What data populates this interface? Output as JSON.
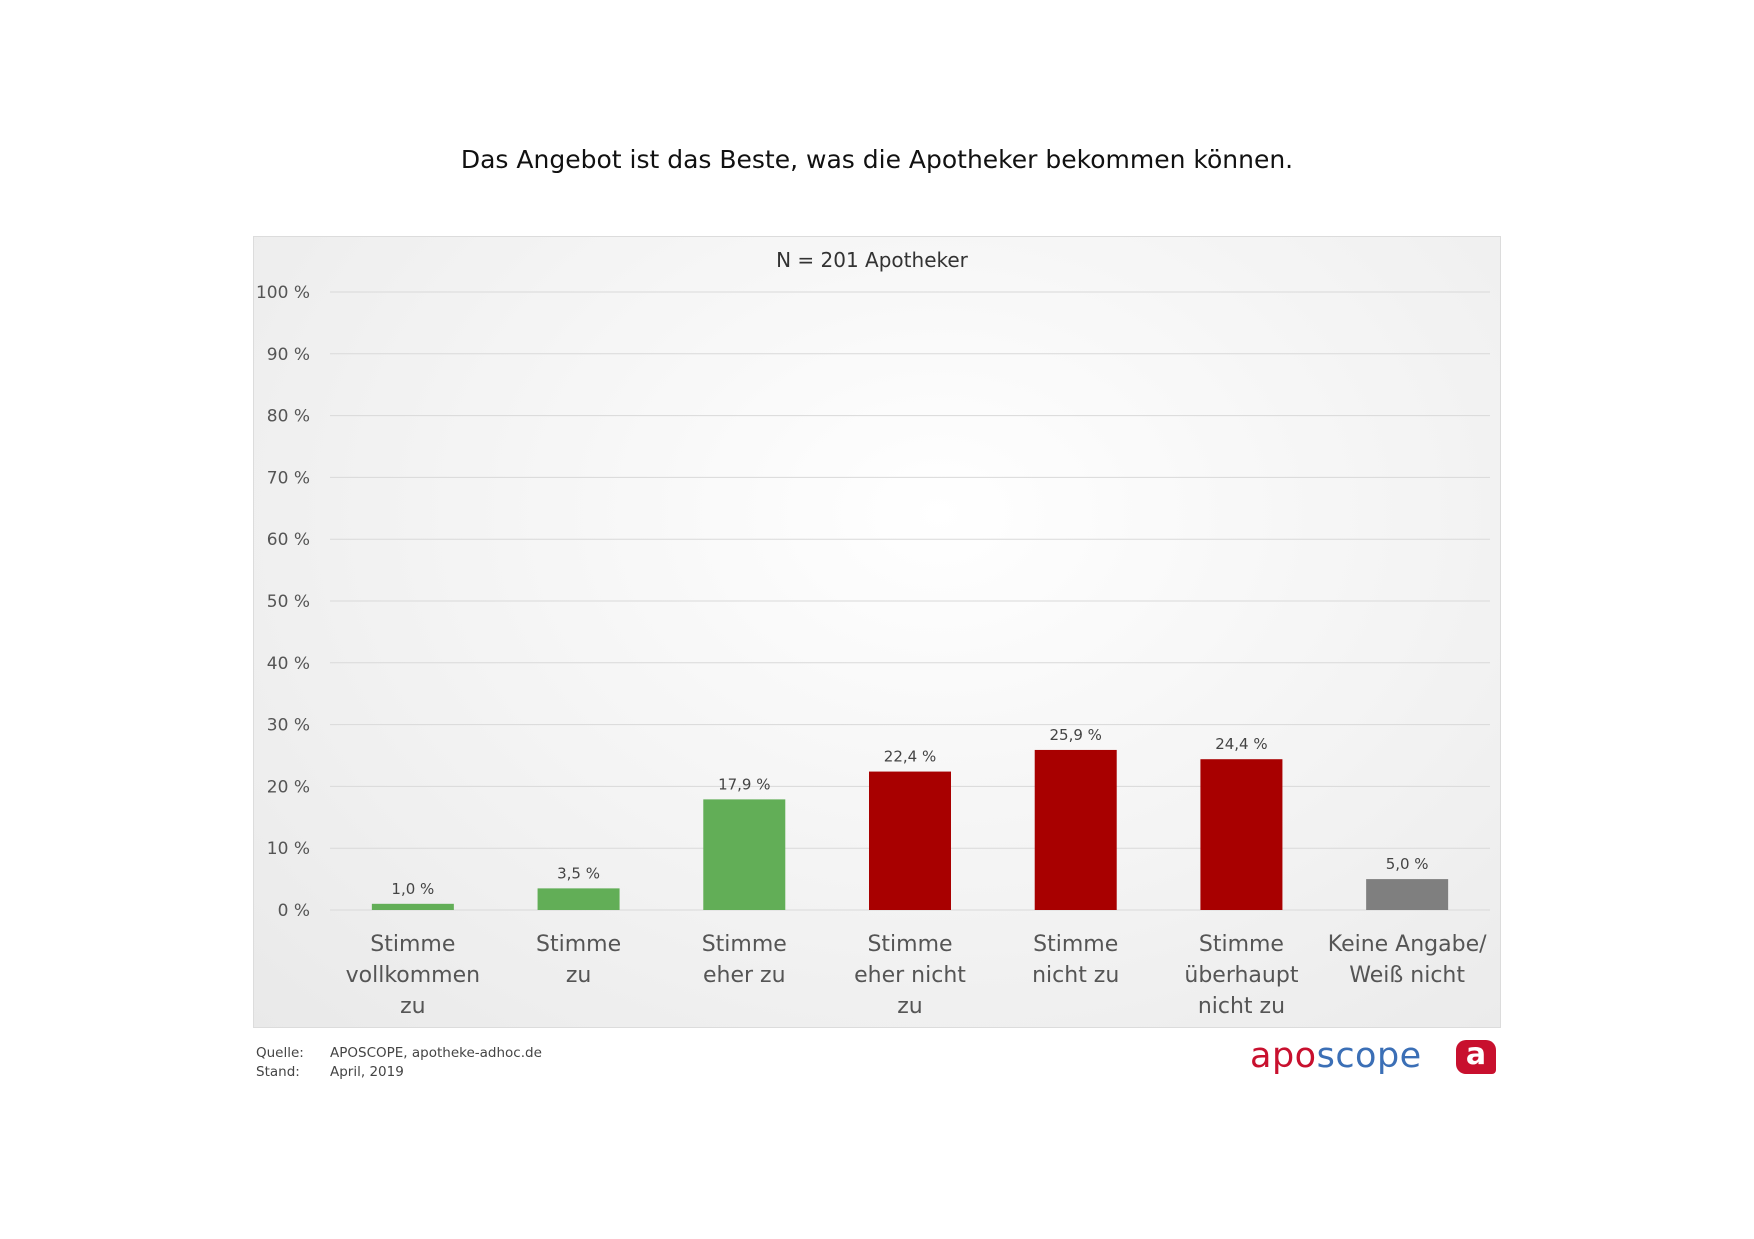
{
  "page": {
    "title": "Das Angebot ist das Beste, was die Apotheker bekommen können."
  },
  "chart_data": {
    "type": "bar",
    "subtitle": "N = 201 Apotheker",
    "categories": [
      [
        "Stimme",
        "vollkommen",
        "zu"
      ],
      [
        "Stimme",
        "zu"
      ],
      [
        "Stimme",
        "eher zu"
      ],
      [
        "Stimme",
        "eher nicht",
        "zu"
      ],
      [
        "Stimme",
        "nicht zu"
      ],
      [
        "Stimme",
        "überhaupt",
        "nicht zu"
      ],
      [
        "Keine Angabe/",
        "Weiß nicht"
      ]
    ],
    "values": [
      1.0,
      3.5,
      17.9,
      22.4,
      25.9,
      24.4,
      5.0
    ],
    "value_labels": [
      "1,0 %",
      "3,5 %",
      "17,9 %",
      "22,4 %",
      "25,9 %",
      "24,4 %",
      "5,0 %"
    ],
    "colors": [
      "#62ae57",
      "#62ae57",
      "#62ae57",
      "#a80000",
      "#a80000",
      "#a80000",
      "#7f7f7f"
    ],
    "ylim": [
      0,
      100
    ],
    "yticks": [
      0,
      10,
      20,
      30,
      40,
      50,
      60,
      70,
      80,
      90,
      100
    ],
    "ytick_labels": [
      "0 %",
      "10 %",
      "20 %",
      "30 %",
      "40 %",
      "50 %",
      "60 %",
      "70 %",
      "80 %",
      "90 %",
      "100 %"
    ],
    "grid": true,
    "xlabel": "",
    "ylabel": ""
  },
  "footer": {
    "source_label": "Quelle:",
    "source_value": "APOSCOPE, apotheke-adhoc.de",
    "date_label": "Stand:",
    "date_value": "April, 2019"
  },
  "brand": {
    "part1": "apo",
    "part2": "scope",
    "badge_letter": "a"
  }
}
